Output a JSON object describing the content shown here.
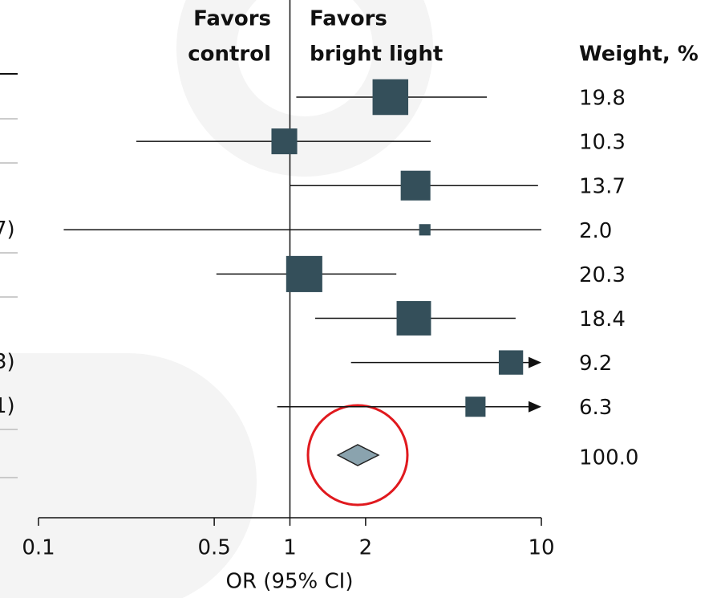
{
  "chart_data": {
    "type": "forest",
    "header_left": [
      "Favors",
      "control"
    ],
    "header_right": [
      "Favors",
      "bright light"
    ],
    "weight_header": "Weight, %",
    "x_label": "OR (95% CI)",
    "row_labels": [
      null,
      null,
      null,
      "7)",
      null,
      null,
      "3)",
      "1)"
    ],
    "values": [
      2.51,
      0.95,
      3.16,
      3.44,
      1.14,
      3.11,
      7.57,
      5.47
    ],
    "ci_lower": [
      1.06,
      0.245,
      1.0,
      0.126,
      0.51,
      1.26,
      1.75,
      0.89
    ],
    "ci_upper": [
      6.07,
      3.63,
      9.7,
      10.0,
      2.65,
      7.9,
      null,
      null
    ],
    "weights": [
      19.8,
      10.3,
      13.7,
      2.0,
      20.3,
      18.4,
      9.2,
      6.3
    ],
    "weight_labels": [
      "19.8",
      "10.3",
      "13.7",
      "2.0",
      "20.3",
      "18.4",
      "9.2",
      "6.3"
    ],
    "pooled": {
      "value": 1.86,
      "ci_lower": 1.55,
      "ci_upper": 2.25,
      "weight": 100,
      "weight_label": "100.0"
    },
    "xlim": [
      0.1,
      10
    ],
    "log_x": true,
    "xticks": [
      0.1,
      0.5,
      1,
      2,
      10
    ],
    "color": "#344f5a",
    "pooled_color": "#8aa3ae"
  }
}
